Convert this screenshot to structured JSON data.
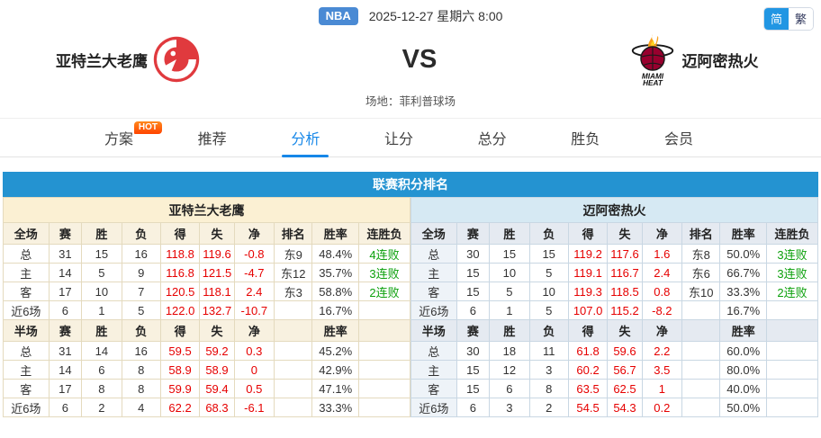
{
  "topbar": {
    "league": "NBA",
    "datetime": "2025-12-27 星期六 8:00",
    "lang": {
      "simplified": "简",
      "traditional": "繁"
    }
  },
  "match": {
    "home": {
      "name": "亚特兰大老鹰"
    },
    "away": {
      "name": "迈阿密热火",
      "logo_caption": "MIAMI HEAT"
    },
    "vs": "VS",
    "venue": "场地：菲利普球场"
  },
  "tabs": [
    {
      "label": "方案",
      "badge": "HOT",
      "active": false
    },
    {
      "label": "推荐",
      "active": false
    },
    {
      "label": "分析",
      "active": true
    },
    {
      "label": "让分",
      "active": false
    },
    {
      "label": "总分",
      "active": false
    },
    {
      "label": "胜负",
      "active": false
    },
    {
      "label": "会员",
      "active": false
    }
  ],
  "standings": {
    "title": "联赛积分排名",
    "teams": [
      {
        "name": "亚特兰大老鹰",
        "theme": "cream",
        "sections": [
          {
            "headers": [
              "全场",
              "赛",
              "胜",
              "负",
              "得",
              "失",
              "净",
              "排名",
              "胜率",
              "连胜负"
            ],
            "rows": [
              [
                "总",
                "31",
                "15",
                "16",
                "118.8",
                "119.6",
                "-0.8",
                "东9",
                "48.4%",
                "4连败"
              ],
              [
                "主",
                "14",
                "5",
                "9",
                "116.8",
                "121.5",
                "-4.7",
                "东12",
                "35.7%",
                "3连败"
              ],
              [
                "客",
                "17",
                "10",
                "7",
                "120.5",
                "118.1",
                "2.4",
                "东3",
                "58.8%",
                "2连败"
              ],
              [
                "近6场",
                "6",
                "1",
                "5",
                "122.0",
                "132.7",
                "-10.7",
                "",
                "16.7%",
                ""
              ]
            ]
          },
          {
            "headers": [
              "半场",
              "赛",
              "胜",
              "负",
              "得",
              "失",
              "净",
              "",
              "胜率",
              ""
            ],
            "rows": [
              [
                "总",
                "31",
                "14",
                "16",
                "59.5",
                "59.2",
                "0.3",
                "",
                "45.2%",
                ""
              ],
              [
                "主",
                "14",
                "6",
                "8",
                "58.9",
                "58.9",
                "0",
                "",
                "42.9%",
                ""
              ],
              [
                "客",
                "17",
                "8",
                "8",
                "59.9",
                "59.4",
                "0.5",
                "",
                "47.1%",
                ""
              ],
              [
                "近6场",
                "6",
                "2",
                "4",
                "62.2",
                "68.3",
                "-6.1",
                "",
                "33.3%",
                ""
              ]
            ]
          }
        ]
      },
      {
        "name": "迈阿密热火",
        "theme": "blue",
        "sections": [
          {
            "headers": [
              "全场",
              "赛",
              "胜",
              "负",
              "得",
              "失",
              "净",
              "排名",
              "胜率",
              "连胜负"
            ],
            "rows": [
              [
                "总",
                "30",
                "15",
                "15",
                "119.2",
                "117.6",
                "1.6",
                "东8",
                "50.0%",
                "3连败"
              ],
              [
                "主",
                "15",
                "10",
                "5",
                "119.1",
                "116.7",
                "2.4",
                "东6",
                "66.7%",
                "3连败"
              ],
              [
                "客",
                "15",
                "5",
                "10",
                "119.3",
                "118.5",
                "0.8",
                "东10",
                "33.3%",
                "2连败"
              ],
              [
                "近6场",
                "6",
                "1",
                "5",
                "107.0",
                "115.2",
                "-8.2",
                "",
                "16.7%",
                ""
              ]
            ]
          },
          {
            "headers": [
              "半场",
              "赛",
              "胜",
              "负",
              "得",
              "失",
              "净",
              "",
              "胜率",
              ""
            ],
            "rows": [
              [
                "总",
                "30",
                "18",
                "11",
                "61.8",
                "59.6",
                "2.2",
                "",
                "60.0%",
                ""
              ],
              [
                "主",
                "15",
                "12",
                "3",
                "60.2",
                "56.7",
                "3.5",
                "",
                "80.0%",
                ""
              ],
              [
                "客",
                "15",
                "6",
                "8",
                "63.5",
                "62.5",
                "1",
                "",
                "40.0%",
                ""
              ],
              [
                "近6场",
                "6",
                "3",
                "2",
                "54.5",
                "54.3",
                "0.2",
                "",
                "50.0%",
                ""
              ]
            ]
          }
        ]
      }
    ]
  },
  "colors": {
    "title_bar_blue": "#2493d1",
    "stat_red": "#e60000",
    "streak_green": "#0ba00b",
    "tab_active_blue": "#1687e8",
    "hot_badge_orange": "#ff5000",
    "nba_badge_blue": "#4a8ad4",
    "lang_active_blue": "#2196e3",
    "hawks_red": "#e03a3e",
    "heat_maroon": "#98002e"
  }
}
